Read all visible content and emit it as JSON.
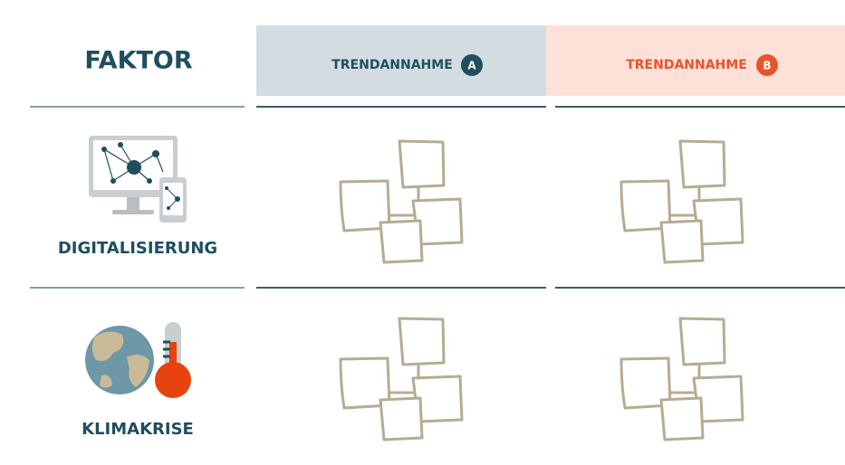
{
  "header": {
    "title": "FAKTOR"
  },
  "columns": [
    {
      "label": "TRENDANNAHME",
      "badge": "A"
    },
    {
      "label": "TRENDANNAHME",
      "badge": "B"
    }
  ],
  "rows": [
    {
      "label": "DIGITALISIERUNG"
    },
    {
      "label": "KLIMAKRISE"
    }
  ]
}
